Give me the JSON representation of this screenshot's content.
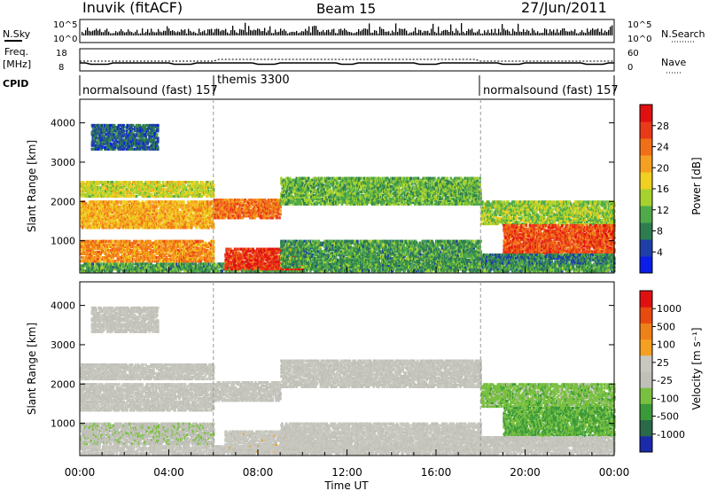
{
  "header": {
    "station": "Inuvik (fitACF)",
    "beam": "Beam 15",
    "date": "27/Jun/2011"
  },
  "top_panels": {
    "nsky_label": "N.Sky",
    "nsky_ticks": [
      "10^5",
      "10^0"
    ],
    "nsearch_label": "N.Search",
    "nsearch_ticks": [
      "10^5",
      "10^0"
    ],
    "freq_label_line1": "Freq.",
    "freq_label_line2": "[MHz]",
    "freq_ticks": [
      "18",
      "8"
    ],
    "nave_label": "Nave",
    "nave_ticks": [
      "60",
      "0"
    ],
    "cpid_label": "CPID",
    "cpid_segments": [
      {
        "label": "normalsound (fast) 157",
        "start": 0,
        "end": 6
      },
      {
        "label": "themis 3300",
        "start": 6,
        "end": 18
      },
      {
        "label": "normalsound (fast) 157",
        "start": 18,
        "end": 24
      }
    ]
  },
  "power_panel": {
    "ylabel": "Slant Range [km]",
    "colorbar_label": "Power [dB]",
    "colorbar_ticks": [
      "28",
      "24",
      "20",
      "16",
      "12",
      "8",
      "4"
    ],
    "colors": [
      "#0a1ee8",
      "#1f3fa8",
      "#2e7d4f",
      "#4faa4a",
      "#a6d22e",
      "#f0d020",
      "#f5a020",
      "#f07018",
      "#e83a18",
      "#e01010"
    ]
  },
  "velocity_panel": {
    "ylabel": "Slant Range [km]",
    "colorbar_label": "Velocity [m s⁻¹]",
    "colorbar_ticks": [
      "1000",
      "500",
      "100",
      "25",
      "-25",
      "-100",
      "-500",
      "-1000"
    ],
    "colors": [
      "#1a2aa8",
      "#2a6a4a",
      "#3a9a3a",
      "#7ac040",
      "#c0c0b8",
      "#c8c8c0",
      "#f5a020",
      "#f08018",
      "#e84a10",
      "#e01010"
    ]
  },
  "xaxis": {
    "label": "Time UT",
    "tick_labels": [
      "00:00",
      "04:00",
      "08:00",
      "12:00",
      "16:00",
      "20:00",
      "00:00"
    ]
  },
  "chart_data": [
    {
      "type": "heatmap",
      "title": "Power",
      "xlabel": "Time UT",
      "ylabel": "Slant Range [km]",
      "xlim": [
        0,
        24
      ],
      "ylim": [
        180,
        4600
      ],
      "yticks": [
        1000,
        2000,
        3000,
        4000
      ],
      "zlabel": "Power [dB]",
      "zlim": [
        0,
        32
      ],
      "scatter_bands": [
        {
          "t_start": 0,
          "t_end": 24,
          "range_min": 200,
          "range_max": 420,
          "value": 10
        },
        {
          "t_start": 0,
          "t_end": 6,
          "range_min": 450,
          "range_max": 1000,
          "value": 22
        },
        {
          "t_start": 0,
          "t_end": 6,
          "range_min": 1300,
          "range_max": 2000,
          "value": 20
        },
        {
          "t_start": 0,
          "t_end": 6,
          "range_min": 2100,
          "range_max": 2500,
          "value": 16
        },
        {
          "t_start": 0.5,
          "t_end": 3.5,
          "range_min": 3300,
          "range_max": 3950,
          "value": 6
        },
        {
          "t_start": 6,
          "t_end": 9,
          "range_min": 1550,
          "range_max": 2050,
          "value": 24
        },
        {
          "t_start": 6.5,
          "t_end": 10,
          "range_min": 250,
          "range_max": 800,
          "value": 28
        },
        {
          "t_start": 9,
          "t_end": 18,
          "range_min": 1900,
          "range_max": 2600,
          "value": 12
        },
        {
          "t_start": 9,
          "t_end": 18,
          "range_min": 300,
          "range_max": 1000,
          "value": 10
        },
        {
          "t_start": 18,
          "t_end": 24,
          "range_min": 1400,
          "range_max": 2000,
          "value": 14
        },
        {
          "t_start": 19,
          "t_end": 24,
          "range_min": 650,
          "range_max": 1400,
          "value": 26
        },
        {
          "t_start": 18,
          "t_end": 24,
          "range_min": 400,
          "range_max": 650,
          "value": 8
        }
      ]
    },
    {
      "type": "heatmap",
      "title": "Velocity",
      "xlabel": "Time UT",
      "ylabel": "Slant Range [km]",
      "xlim": [
        0,
        24
      ],
      "ylim": [
        180,
        4600
      ],
      "yticks": [
        1000,
        2000,
        3000,
        4000
      ],
      "zlabel": "Velocity [m s⁻¹]",
      "zlim": [
        -1000,
        1000
      ],
      "scatter_bands": [
        {
          "t_start": 0,
          "t_end": 24,
          "range_min": 200,
          "range_max": 420,
          "value": 60
        },
        {
          "t_start": 0,
          "t_end": 6,
          "range_min": 450,
          "range_max": 1000,
          "value": -120
        },
        {
          "t_start": 0,
          "t_end": 6,
          "range_min": 1300,
          "range_max": 2000,
          "value": 0
        },
        {
          "t_start": 0,
          "t_end": 6,
          "range_min": 2100,
          "range_max": 2500,
          "value": 0
        },
        {
          "t_start": 0.5,
          "t_end": 3.5,
          "range_min": 3300,
          "range_max": 3950,
          "value": 0
        },
        {
          "t_start": 6,
          "t_end": 9,
          "range_min": 1550,
          "range_max": 2050,
          "value": 0
        },
        {
          "t_start": 6.5,
          "t_end": 10,
          "range_min": 250,
          "range_max": 800,
          "value": 80
        },
        {
          "t_start": 9,
          "t_end": 18,
          "range_min": 1900,
          "range_max": 2600,
          "value": 0
        },
        {
          "t_start": 9,
          "t_end": 18,
          "range_min": 300,
          "range_max": 1000,
          "value": 30
        },
        {
          "t_start": 18,
          "t_end": 24,
          "range_min": 1400,
          "range_max": 2000,
          "value": -300
        },
        {
          "t_start": 19,
          "t_end": 24,
          "range_min": 650,
          "range_max": 1400,
          "value": -400
        },
        {
          "t_start": 18,
          "t_end": 24,
          "range_min": 400,
          "range_max": 650,
          "value": 0
        }
      ]
    }
  ]
}
